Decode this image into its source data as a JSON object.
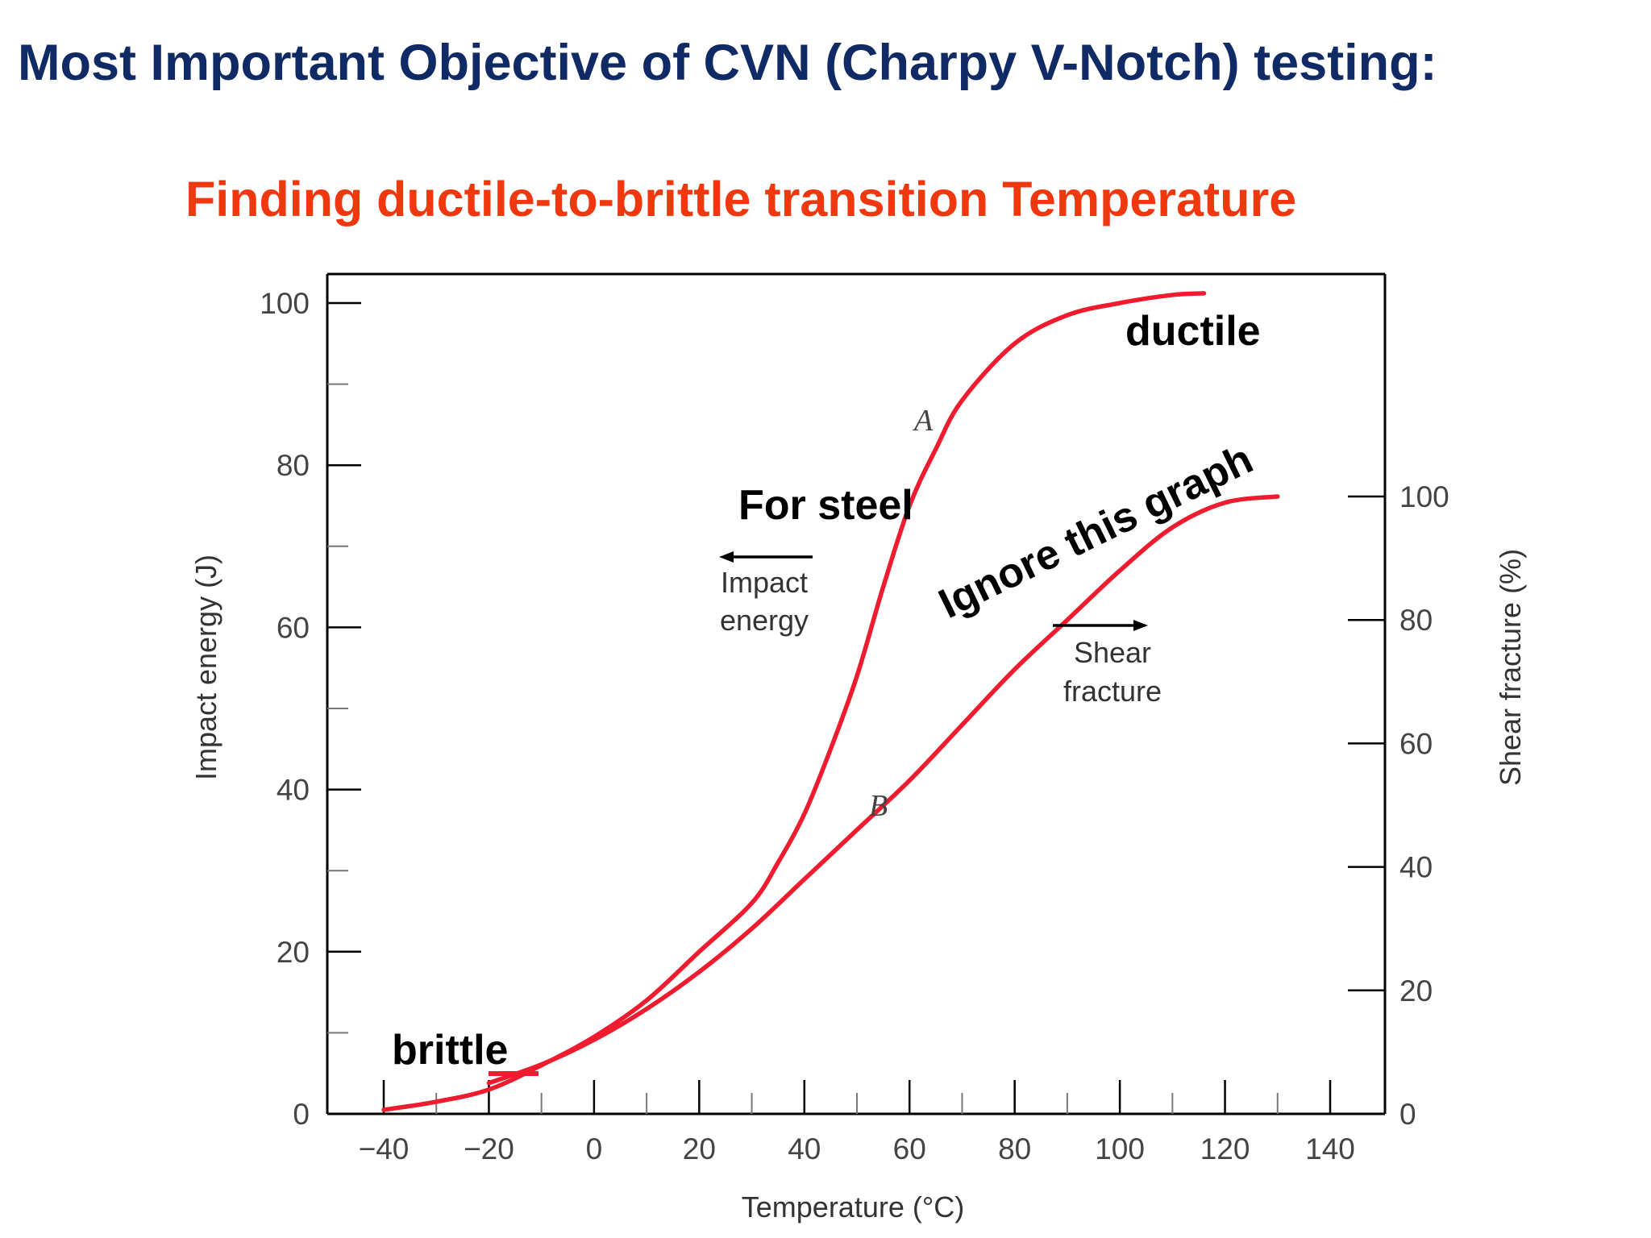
{
  "title": "Most Important Objective of CVN (Charpy V-Notch) testing:",
  "subtitle": "Finding ductile-to-brittle transition Temperature",
  "colors": {
    "title": "#0f2a64",
    "subtitle": "#f0380f",
    "curve": "#ee1c2e",
    "arrow": "#000000"
  },
  "annotations": {
    "ductile": "ductile",
    "brittle": "brittle",
    "for_steel": "For steel",
    "ignore": "Ignore this graph",
    "impact_energy_line1": "Impact",
    "impact_energy_line2": "energy",
    "shear_fracture_line1": "Shear",
    "shear_fracture_line2": "fracture"
  },
  "chart_data": {
    "type": "line",
    "xlabel": "Temperature (°C)",
    "ylabel": "Impact energy (J)",
    "y2label": "Shear fracture (%)",
    "xlim": [
      -40,
      140
    ],
    "ylim": [
      0,
      100
    ],
    "y2lim": [
      0,
      100
    ],
    "xticks": [
      "−40",
      "−20",
      "0",
      "20",
      "40",
      "60",
      "80",
      "100",
      "120",
      "140"
    ],
    "yticks": [
      "0",
      "20",
      "40",
      "60",
      "80",
      "100"
    ],
    "y2ticks": [
      "0",
      "20",
      "40",
      "60",
      "80",
      "100"
    ],
    "series": [
      {
        "name": "A",
        "axis": "left",
        "points": [
          [
            -40,
            0.5
          ],
          [
            -30,
            1.5
          ],
          [
            -20,
            3
          ],
          [
            -10,
            6
          ],
          [
            0,
            9.5
          ],
          [
            10,
            14
          ],
          [
            20,
            20
          ],
          [
            30,
            26
          ],
          [
            35,
            31
          ],
          [
            40,
            37
          ],
          [
            45,
            45
          ],
          [
            50,
            54
          ],
          [
            55,
            65
          ],
          [
            60,
            75
          ],
          [
            65,
            82
          ],
          [
            70,
            88
          ],
          [
            80,
            95
          ],
          [
            90,
            98.5
          ],
          [
            100,
            100
          ],
          [
            110,
            101
          ],
          [
            116,
            101.2
          ]
        ]
      },
      {
        "name": "B",
        "axis": "right",
        "points": [
          [
            -20,
            5
          ],
          [
            -10,
            8
          ],
          [
            0,
            12
          ],
          [
            10,
            17
          ],
          [
            20,
            23
          ],
          [
            30,
            30
          ],
          [
            40,
            38
          ],
          [
            50,
            46
          ],
          [
            60,
            54
          ],
          [
            70,
            63
          ],
          [
            80,
            72
          ],
          [
            90,
            80
          ],
          [
            100,
            88
          ],
          [
            110,
            95
          ],
          [
            120,
            99
          ],
          [
            130,
            100
          ]
        ]
      }
    ]
  }
}
